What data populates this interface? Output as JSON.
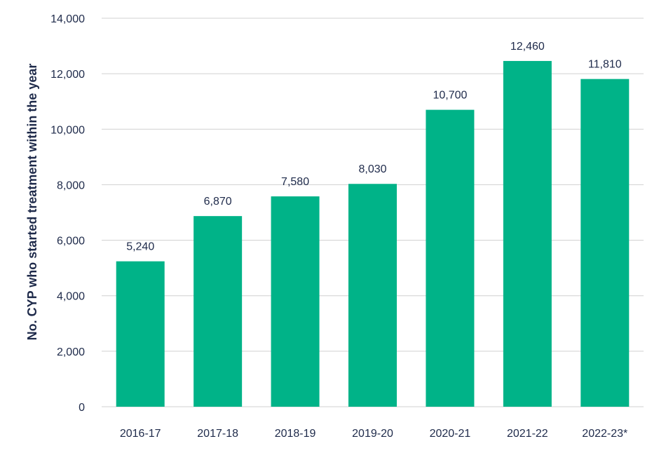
{
  "chart_data": {
    "type": "bar",
    "ylabel": "No. CYP who started treatment within the year",
    "xlabel": "",
    "categories": [
      "2016-17",
      "2017-18",
      "2018-19",
      "2019-20",
      "2020-21",
      "2021-22",
      "2022-23*"
    ],
    "values": [
      5240,
      6870,
      7580,
      8030,
      10700,
      12460,
      11810
    ],
    "value_labels": [
      "5,240",
      "6,870",
      "7,580",
      "8,030",
      "10,700",
      "12,460",
      "11,810"
    ],
    "ylim": [
      0,
      14000
    ],
    "yticks": [
      0,
      2000,
      4000,
      6000,
      8000,
      10000,
      12000,
      14000
    ],
    "ytick_labels": [
      "0",
      "2,000",
      "4,000",
      "6,000",
      "8,000",
      "10,000",
      "12,000",
      "14,000"
    ],
    "grid": true,
    "legend": "none",
    "bar_color": "#00b388"
  }
}
